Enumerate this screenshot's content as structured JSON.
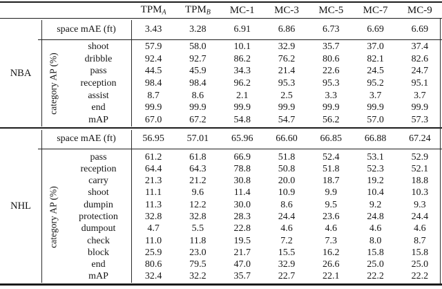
{
  "table": {
    "header": [
      {
        "base": "TPM",
        "sub": "A"
      },
      {
        "base": "TPM",
        "sub": "B"
      },
      {
        "base": "MC-1",
        "sub": ""
      },
      {
        "base": "MC-3",
        "sub": ""
      },
      {
        "base": "MC-5",
        "sub": ""
      },
      {
        "base": "MC-7",
        "sub": ""
      },
      {
        "base": "MC-9",
        "sub": ""
      }
    ],
    "sections": [
      {
        "name": "NBA",
        "space_row": {
          "label": "space mAE (ft)",
          "values": [
            "3.43",
            "3.28",
            "6.91",
            "6.86",
            "6.73",
            "6.69",
            "6.69"
          ]
        },
        "category_axis_label": "category AP (%)",
        "rows": [
          {
            "label": "shoot",
            "values": [
              "57.9",
              "58.0",
              "10.1",
              "32.9",
              "35.7",
              "37.0",
              "37.4"
            ]
          },
          {
            "label": "dribble",
            "values": [
              "92.4",
              "92.7",
              "86.2",
              "76.2",
              "80.6",
              "82.1",
              "82.6"
            ]
          },
          {
            "label": "pass",
            "values": [
              "44.5",
              "45.9",
              "34.3",
              "21.4",
              "22.6",
              "24.5",
              "24.7"
            ]
          },
          {
            "label": "reception",
            "values": [
              "98.4",
              "98.4",
              "96.2",
              "95.3",
              "95.3",
              "95.2",
              "95.1"
            ]
          },
          {
            "label": "assist",
            "values": [
              "8.7",
              "8.6",
              "2.1",
              "2.5",
              "3.3",
              "3.7",
              "3.7"
            ]
          },
          {
            "label": "end",
            "values": [
              "99.9",
              "99.9",
              "99.9",
              "99.9",
              "99.9",
              "99.9",
              "99.9"
            ]
          },
          {
            "label": "mAP",
            "values": [
              "67.0",
              "67.2",
              "54.8",
              "54.7",
              "56.2",
              "57.0",
              "57.3"
            ]
          }
        ]
      },
      {
        "name": "NHL",
        "space_row": {
          "label": "space mAE (ft)",
          "values": [
            "56.95",
            "57.01",
            "65.96",
            "66.60",
            "66.85",
            "66.88",
            "67.24"
          ]
        },
        "category_axis_label": "category AP (%)",
        "rows": [
          {
            "label": "pass",
            "values": [
              "61.2",
              "61.8",
              "66.9",
              "51.8",
              "52.4",
              "53.1",
              "52.9"
            ]
          },
          {
            "label": "reception",
            "values": [
              "64.4",
              "64.3",
              "78.8",
              "50.8",
              "51.8",
              "52.3",
              "52.1"
            ]
          },
          {
            "label": "carry",
            "values": [
              "21.3",
              "21.2",
              "30.8",
              "20.0",
              "18.7",
              "19.2",
              "18.8"
            ]
          },
          {
            "label": "shoot",
            "values": [
              "11.1",
              "9.6",
              "11.4",
              "10.9",
              "9.9",
              "10.4",
              "10.3"
            ]
          },
          {
            "label": "dumpin",
            "values": [
              "11.3",
              "12.2",
              "30.0",
              "8.6",
              "9.5",
              "9.2",
              "9.3"
            ]
          },
          {
            "label": "protection",
            "values": [
              "32.8",
              "32.8",
              "28.3",
              "24.4",
              "23.6",
              "24.8",
              "24.4"
            ]
          },
          {
            "label": "dumpout",
            "values": [
              "4.7",
              "5.5",
              "22.8",
              "4.6",
              "4.6",
              "4.6",
              "4.6"
            ]
          },
          {
            "label": "check",
            "values": [
              "11.0",
              "11.8",
              "19.5",
              "7.2",
              "7.3",
              "8.0",
              "8.7"
            ]
          },
          {
            "label": "block",
            "values": [
              "25.9",
              "23.0",
              "21.7",
              "15.5",
              "16.2",
              "15.8",
              "15.8"
            ]
          },
          {
            "label": "end",
            "values": [
              "80.6",
              "79.5",
              "47.0",
              "32.9",
              "26.6",
              "25.0",
              "25.0"
            ]
          },
          {
            "label": "mAP",
            "values": [
              "32.4",
              "32.2",
              "35.7",
              "22.7",
              "22.1",
              "22.2",
              "22.2"
            ]
          }
        ]
      }
    ]
  }
}
